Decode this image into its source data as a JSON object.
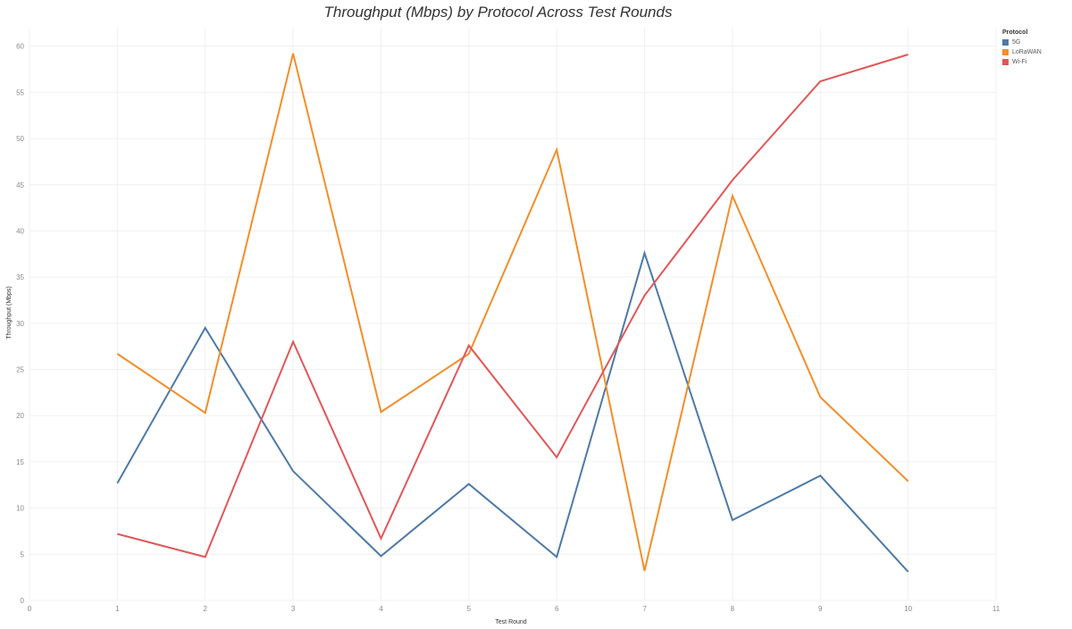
{
  "chart_data": {
    "type": "line",
    "title": "Throughput (Mbps)  by Protocol Across Test Rounds",
    "xlabel": "Test Round",
    "ylabel": "Throughput (Mbps)",
    "xlim": [
      0,
      11
    ],
    "ylim": [
      0,
      62
    ],
    "x_ticks": [
      0,
      1,
      2,
      3,
      4,
      5,
      6,
      7,
      8,
      9,
      10,
      11
    ],
    "y_ticks": [
      0,
      5,
      10,
      15,
      20,
      25,
      30,
      35,
      40,
      45,
      50,
      55,
      60
    ],
    "x": [
      1,
      2,
      3,
      4,
      5,
      6,
      7,
      8,
      9,
      10
    ],
    "grid": true,
    "legend_position": "top-right",
    "legend_title": "Protocol",
    "series": [
      {
        "name": "5G",
        "color": "#4e79a7",
        "values": [
          12.7,
          29.5,
          14.0,
          4.8,
          12.6,
          4.7,
          37.6,
          8.7,
          13.5,
          3.1
        ]
      },
      {
        "name": "LoRaWAN",
        "color": "#f28e2b",
        "values": [
          26.7,
          20.3,
          59.2,
          20.4,
          26.7,
          48.8,
          3.2,
          43.8,
          22.0,
          12.9
        ]
      },
      {
        "name": "Wi-Fi",
        "color": "#e15759",
        "values": [
          7.2,
          4.7,
          28.0,
          6.7,
          27.6,
          15.5,
          33.0,
          45.5,
          56.2,
          59.1
        ]
      }
    ]
  }
}
